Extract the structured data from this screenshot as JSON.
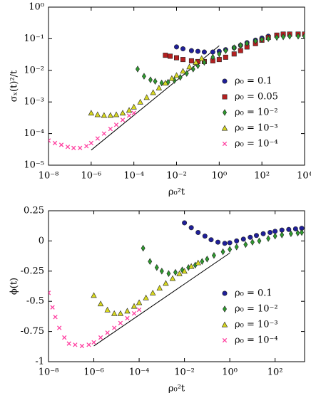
{
  "chart_data": [
    {
      "type": "scatter",
      "xscale": "log",
      "yscale": "log",
      "xlabel": "ρ₀²t",
      "ylabel": "σₓ(t)²/t",
      "legend": "lower right",
      "xlim": [
        1e-08,
        10000.0
      ],
      "ylim": [
        1e-05,
        1
      ],
      "xticks": [
        {
          "value": 1e-08,
          "label": "10⁻⁸"
        },
        {
          "value": 1e-06,
          "label": "10⁻⁶"
        },
        {
          "value": 0.0001,
          "label": "10⁻⁴"
        },
        {
          "value": 0.01,
          "label": "10⁻²"
        },
        {
          "value": 1,
          "label": "10⁰"
        },
        {
          "value": 100,
          "label": "10²"
        },
        {
          "value": 10000,
          "label": "10⁴"
        }
      ],
      "yticks": [
        {
          "value": 1e-05,
          "label": "10⁻⁵"
        },
        {
          "value": 0.0001,
          "label": "10⁻⁴"
        },
        {
          "value": 0.001,
          "label": "10⁻³"
        },
        {
          "value": 0.01,
          "label": "10⁻²"
        },
        {
          "value": 0.1,
          "label": "10⁻¹"
        },
        {
          "value": 1,
          "label": "10⁰"
        }
      ],
      "fit_line": {
        "color": "#000000",
        "x": [
          1e-06,
          1
        ],
        "values": [
          3e-05,
          0.06
        ]
      },
      "series": [
        {
          "name": "ρ₀ = 0.1",
          "color": "#1f1f9a",
          "marker": "circle",
          "x": [
            0.01,
            0.02,
            0.05,
            0.1,
            0.2,
            0.5,
            1,
            2,
            5,
            10,
            20,
            50,
            100,
            200,
            500,
            1000,
            2000,
            5000,
            10000
          ],
          "values": [
            0.055,
            0.048,
            0.042,
            0.04,
            0.038,
            0.038,
            0.04,
            0.045,
            0.052,
            0.062,
            0.075,
            0.09,
            0.105,
            0.12,
            0.13,
            0.135,
            0.135,
            0.135,
            0.135
          ]
        },
        {
          "name": "ρ₀ = 0.05",
          "color": "#b52020",
          "marker": "square",
          "x": [
            0.003,
            0.005,
            0.01,
            0.02,
            0.05,
            0.1,
            0.2,
            0.5,
            1,
            2,
            5,
            10,
            20,
            50,
            100,
            200,
            500,
            1000,
            2000,
            5000,
            10000
          ],
          "values": [
            0.03,
            0.028,
            0.025,
            0.022,
            0.02,
            0.019,
            0.019,
            0.02,
            0.022,
            0.026,
            0.033,
            0.042,
            0.055,
            0.07,
            0.09,
            0.11,
            0.13,
            0.14,
            0.14,
            0.14,
            0.14
          ]
        },
        {
          "name": "ρ₀ = 10⁻²",
          "color": "#2e9a2e",
          "marker": "diamond",
          "x": [
            0.00015,
            0.0003,
            0.0006,
            0.001,
            0.002,
            0.004,
            0.008,
            0.015,
            0.03,
            0.06,
            0.1,
            0.2,
            0.5,
            1,
            2,
            5,
            10,
            20,
            50,
            100,
            200,
            500,
            1000,
            2000,
            5000,
            10000
          ],
          "values": [
            0.011,
            0.0065,
            0.005,
            0.0045,
            0.004,
            0.0042,
            0.0048,
            0.006,
            0.008,
            0.011,
            0.014,
            0.018,
            0.026,
            0.033,
            0.042,
            0.052,
            0.062,
            0.072,
            0.085,
            0.095,
            0.1,
            0.11,
            0.115,
            0.12,
            0.12,
            0.12
          ]
        },
        {
          "name": "ρ₀ = 10⁻³",
          "color": "#d8d820",
          "marker": "triangle",
          "x": [
            1e-06,
            2e-06,
            4e-06,
            8e-06,
            1.5e-05,
            3e-05,
            6e-05,
            0.0001,
            0.0002,
            0.0004,
            0.0008,
            0.0015,
            0.003,
            0.006,
            0.01,
            0.02,
            0.04,
            0.08,
            0.15
          ],
          "values": [
            0.00045,
            0.0004,
            0.00038,
            0.00038,
            0.0004,
            0.00045,
            0.00055,
            0.0007,
            0.001,
            0.0014,
            0.002,
            0.0028,
            0.004,
            0.0056,
            0.007,
            0.0095,
            0.013,
            0.018,
            0.024
          ]
        },
        {
          "name": "ρ₀ = 10⁻⁴",
          "color": "#ff3fa0",
          "marker": "cross",
          "x": [
            1e-08,
            2e-08,
            4e-08,
            8e-08,
            1.5e-07,
            3e-07,
            6e-07,
            1e-06,
            2e-06,
            4e-06,
            8e-06,
            1.5e-05,
            3e-05,
            6e-05,
            0.0001
          ],
          "values": [
            6e-05,
            5e-05,
            4.4e-05,
            3.8e-05,
            3.5e-05,
            3.5e-05,
            4e-05,
            5e-05,
            7e-05,
            0.0001,
            0.00014,
            0.00019,
            0.00027,
            0.00037,
            0.00045
          ]
        }
      ]
    },
    {
      "type": "scatter",
      "xscale": "log",
      "yscale": "linear",
      "xlabel": "ρ₀²t",
      "ylabel": "ϕ(t)",
      "legend": "lower right",
      "xlim": [
        1e-08,
        2000
      ],
      "ylim": [
        -1,
        0.25
      ],
      "xticks": [
        {
          "value": 1e-08,
          "label": "10⁻⁸"
        },
        {
          "value": 1e-06,
          "label": "10⁻⁶"
        },
        {
          "value": 0.0001,
          "label": "10⁻⁴"
        },
        {
          "value": 0.01,
          "label": "10⁻²"
        },
        {
          "value": 1,
          "label": "10⁰"
        },
        {
          "value": 100,
          "label": "10²"
        }
      ],
      "yticks": [
        0.25,
        0,
        -0.25,
        -0.5,
        -0.75,
        -1
      ],
      "fit_line": {
        "color": "#000000",
        "x": [
          1e-06,
          1
        ],
        "values": [
          -0.87,
          -0.1
        ]
      },
      "series": [
        {
          "name": "ρ₀ = 0.1",
          "color": "#1f1f9a",
          "marker": "circle",
          "x": [
            0.01,
            0.02,
            0.04,
            0.08,
            0.15,
            0.3,
            0.6,
            1,
            2,
            4,
            8,
            15,
            30,
            60,
            100,
            200,
            400,
            800,
            1500
          ],
          "values": [
            0.15,
            0.11,
            0.07,
            0.04,
            0.01,
            -0.01,
            -0.02,
            -0.015,
            0,
            0.015,
            0.03,
            0.045,
            0.06,
            0.07,
            0.08,
            0.09,
            0.095,
            0.1,
            0.105
          ]
        },
        {
          "name": "ρ₀ = 10⁻²",
          "color": "#2e9a2e",
          "marker": "diamond",
          "x": [
            0.00015,
            0.0003,
            0.0006,
            0.001,
            0.002,
            0.004,
            0.008,
            0.015,
            0.03,
            0.06,
            0.1,
            0.2,
            0.5,
            1,
            2,
            5,
            10,
            20,
            50,
            100,
            200,
            500,
            1000,
            1500
          ],
          "values": [
            -0.06,
            -0.17,
            -0.22,
            -0.25,
            -0.27,
            -0.26,
            -0.24,
            -0.22,
            -0.2,
            -0.17,
            -0.15,
            -0.12,
            -0.09,
            -0.07,
            -0.05,
            -0.03,
            -0.01,
            0,
            0.02,
            0.04,
            0.05,
            0.06,
            0.065,
            0.07
          ]
        },
        {
          "name": "ρ₀ = 10⁻³",
          "color": "#d8d820",
          "marker": "triangle",
          "x": [
            1e-06,
            2e-06,
            4e-06,
            8e-06,
            1.5e-05,
            3e-05,
            6e-05,
            0.0001,
            0.0002,
            0.0004,
            0.0008,
            0.0015,
            0.003,
            0.006,
            0.01,
            0.02,
            0.04
          ],
          "values": [
            -0.45,
            -0.52,
            -0.57,
            -0.6,
            -0.6,
            -0.58,
            -0.54,
            -0.51,
            -0.47,
            -0.43,
            -0.39,
            -0.35,
            -0.31,
            -0.27,
            -0.25,
            -0.21,
            -0.18
          ]
        },
        {
          "name": "ρ₀ = 10⁻⁴",
          "color": "#ff3fa0",
          "marker": "cross",
          "x": [
            1e-08,
            1.5e-08,
            2e-08,
            3e-08,
            5e-08,
            8e-08,
            1.5e-07,
            3e-07,
            6e-07,
            1e-06,
            2e-06,
            4e-06,
            8e-06,
            1.5e-05,
            3e-05,
            6e-05,
            0.0001
          ],
          "values": [
            -0.43,
            -0.55,
            -0.63,
            -0.72,
            -0.8,
            -0.85,
            -0.86,
            -0.87,
            -0.86,
            -0.84,
            -0.8,
            -0.76,
            -0.72,
            -0.68,
            -0.64,
            -0.6,
            -0.57
          ]
        }
      ]
    }
  ]
}
